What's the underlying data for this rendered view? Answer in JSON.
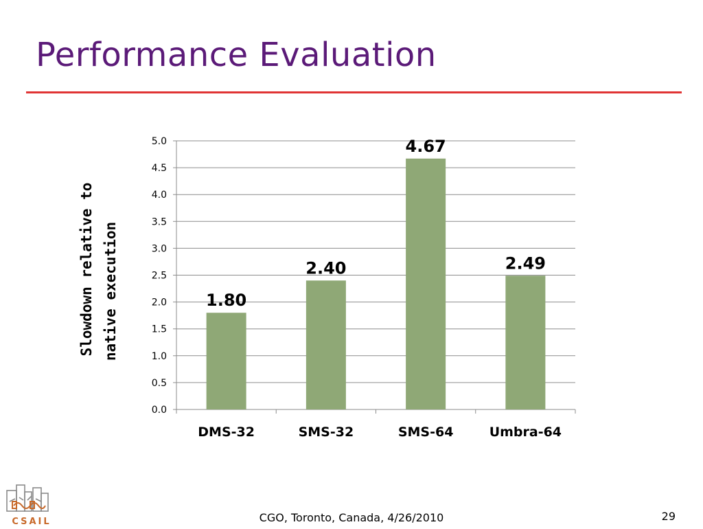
{
  "slide": {
    "title": "Performance Evaluation",
    "footer": "CGO, Toronto, Canada, 4/26/2010",
    "page_number": "29",
    "accent_color": "#5b1a78",
    "rule_color": "#e03434"
  },
  "logo": {
    "text": "CSAIL"
  },
  "chart_data": {
    "type": "bar",
    "title": "",
    "ylabel_lines": [
      "Slowdown relative to",
      "native execution"
    ],
    "xlabel": "",
    "categories": [
      "DMS-32",
      "SMS-32",
      "SMS-64",
      "Umbra-64"
    ],
    "values": [
      1.8,
      2.4,
      4.67,
      2.49
    ],
    "data_labels": [
      "1.80",
      "2.40",
      "4.67",
      "2.49"
    ],
    "ylim": [
      0,
      5
    ],
    "ytick_step": 0.5,
    "ytick_labels": [
      "0.0",
      "0.5",
      "1.0",
      "1.5",
      "2.0",
      "2.5",
      "3.0",
      "3.5",
      "4.0",
      "4.5",
      "5.0"
    ],
    "grid": true,
    "legend": "none",
    "bar_color": "#8fa876"
  }
}
